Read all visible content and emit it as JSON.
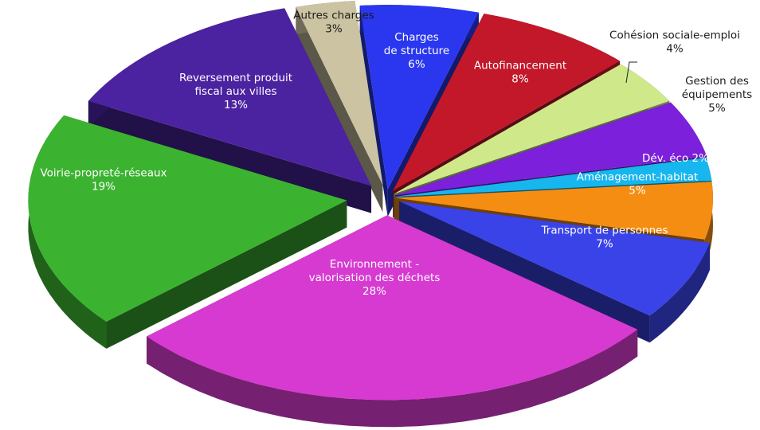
{
  "chart_data": {
    "type": "pie",
    "title": "",
    "exploded_3d": true,
    "slices": [
      {
        "label": "Charges de structure",
        "label_lines": [
          "Charges",
          "de structure"
        ],
        "pct_text": "6%",
        "value": 6,
        "color": "#2a37ee",
        "label_inside": true
      },
      {
        "label": "Autofinancement",
        "label_lines": [
          "Autofinancement"
        ],
        "pct_text": "8%",
        "value": 8,
        "color": "#c2182a",
        "label_inside": true
      },
      {
        "label": "Cohésion sociale-emploi",
        "label_lines": [
          "Cohésion sociale-emploi"
        ],
        "pct_text": "4%",
        "value": 4,
        "color": "#cfe98a",
        "label_inside": false
      },
      {
        "label": "Gestion des équipements",
        "label_lines": [
          "Gestion des",
          "équipements"
        ],
        "pct_text": "5%",
        "value": 5,
        "color": "#7c20dc",
        "label_inside": false
      },
      {
        "label": "Dév. éco",
        "label_lines": [
          "Dév. éco 2%"
        ],
        "pct_text": "",
        "value": 2,
        "color": "#17b6ee",
        "label_inside": true
      },
      {
        "label": "Aménagement-habitat",
        "label_lines": [
          "Aménagement-habitat"
        ],
        "pct_text": "5%",
        "value": 5,
        "color": "#f58d12",
        "label_inside": true
      },
      {
        "label": "Transport de personnes",
        "label_lines": [
          "Transport de personnes"
        ],
        "pct_text": "7%",
        "value": 7,
        "color": "#3a43e8",
        "label_inside": true
      },
      {
        "label": "Environnement - valorisation des déchets",
        "label_lines": [
          "Environnement -",
          "valorisation des déchets"
        ],
        "pct_text": "28%",
        "value": 28,
        "color": "#d63ad0",
        "label_inside": true
      },
      {
        "label": "Voirie-propreté-réseaux",
        "label_lines": [
          "Voirie-propreté-réseaux"
        ],
        "pct_text": "19%",
        "value": 19,
        "color": "#3bb330",
        "label_inside": true
      },
      {
        "label": "Reversement produit fiscal aux villes",
        "label_lines": [
          "Reversement produit",
          "fiscal aux villes"
        ],
        "pct_text": "13%",
        "value": 13,
        "color": "#4b23a0",
        "label_inside": true
      },
      {
        "label": "Autres charges",
        "label_lines": [
          "Autres charges"
        ],
        "pct_text": "3%",
        "value": 3,
        "color": "#cbc3a2",
        "label_inside": false
      }
    ]
  }
}
